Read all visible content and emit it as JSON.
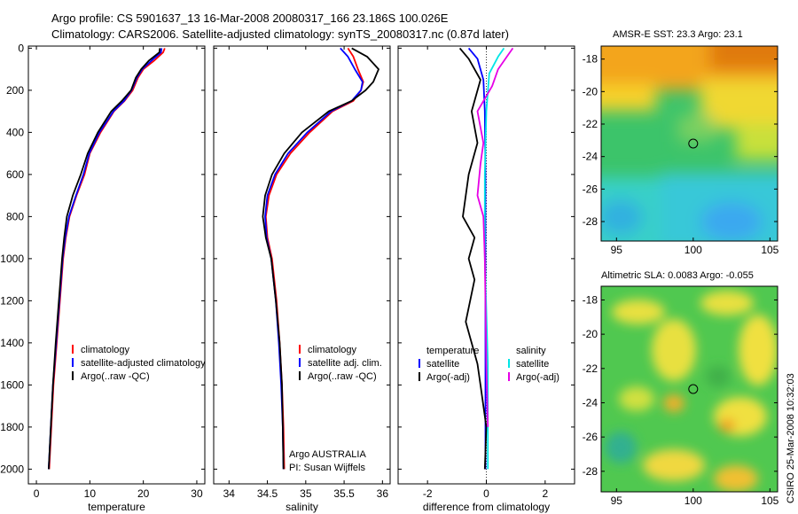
{
  "header": {
    "line1": "Argo profile: CS 5901637_13 16-Mar-2008 20080317_166 23.186S 100.026E",
    "line2": "Climatology: CARS2006. Satellite-adjusted climatology: synTS_20080317.nc (0.87d later)"
  },
  "footer": {
    "side_label": "CSIRO 25-Mar-2008 10:32:03",
    "float_label": "Argo AUSTRALIA",
    "pi_label": "PI: Susan Wijffels"
  },
  "colors": {
    "climatology": "#ff0000",
    "satellite": "#0000ff",
    "argo": "#000000",
    "sal_satellite": "#00e6e6",
    "sal_argo": "#e600e6"
  },
  "chart_data": [
    {
      "type": "line",
      "id": "temperature_profile",
      "xlabel": "temperature",
      "ylabel": "",
      "xlim": [
        -1.5,
        31.5
      ],
      "ylim": [
        2070,
        -10
      ],
      "y_reversed": true,
      "xticks": [
        0,
        10,
        20,
        30
      ],
      "yticks": [
        0,
        200,
        400,
        600,
        800,
        1000,
        1200,
        1400,
        1600,
        1800,
        2000
      ],
      "legend_position": "lower-right",
      "legend": [
        "climatology",
        "satellite-adjusted climatology",
        "Argo(..raw -QC)"
      ],
      "series": [
        {
          "name": "climatology",
          "color": "#ff0000",
          "points": [
            [
              24.0,
              0
            ],
            [
              23.7,
              20
            ],
            [
              22.0,
              60
            ],
            [
              20.0,
              100
            ],
            [
              19.0,
              140
            ],
            [
              18.0,
              200
            ],
            [
              16.5,
              250
            ],
            [
              14.5,
              300
            ],
            [
              12.0,
              400
            ],
            [
              10.0,
              500
            ],
            [
              9.0,
              600
            ],
            [
              7.5,
              700
            ],
            [
              6.2,
              800
            ],
            [
              5.5,
              900
            ],
            [
              5.0,
              1000
            ],
            [
              4.4,
              1200
            ],
            [
              3.8,
              1400
            ],
            [
              3.2,
              1600
            ],
            [
              2.8,
              1800
            ],
            [
              2.4,
              2000
            ]
          ]
        },
        {
          "name": "satellite-adjusted climatology",
          "color": "#0000ff",
          "points": [
            [
              23.4,
              0
            ],
            [
              23.3,
              20
            ],
            [
              21.5,
              60
            ],
            [
              19.8,
              100
            ],
            [
              18.8,
              140
            ],
            [
              17.8,
              200
            ],
            [
              16.4,
              250
            ],
            [
              14.4,
              300
            ],
            [
              11.8,
              400
            ],
            [
              9.9,
              500
            ],
            [
              8.8,
              600
            ],
            [
              7.4,
              700
            ],
            [
              6.1,
              800
            ],
            [
              5.4,
              900
            ],
            [
              4.9,
              1000
            ],
            [
              4.3,
              1200
            ],
            [
              3.7,
              1400
            ],
            [
              3.1,
              1600
            ],
            [
              2.7,
              1800
            ],
            [
              2.3,
              2000
            ]
          ]
        },
        {
          "name": "Argo(..raw -QC)",
          "color": "#000000",
          "points": [
            [
              23.1,
              0
            ],
            [
              23.0,
              20
            ],
            [
              21.0,
              60
            ],
            [
              19.6,
              100
            ],
            [
              18.6,
              140
            ],
            [
              17.7,
              200
            ],
            [
              16.0,
              250
            ],
            [
              14.0,
              300
            ],
            [
              11.5,
              400
            ],
            [
              9.6,
              500
            ],
            [
              8.3,
              600
            ],
            [
              6.8,
              700
            ],
            [
              5.7,
              800
            ],
            [
              5.2,
              900
            ],
            [
              4.8,
              1000
            ],
            [
              4.2,
              1200
            ],
            [
              3.6,
              1400
            ],
            [
              3.1,
              1600
            ],
            [
              2.7,
              1800
            ],
            [
              2.3,
              2000
            ]
          ]
        }
      ]
    },
    {
      "type": "line",
      "id": "salinity_profile",
      "xlabel": "salinity",
      "ylabel": "",
      "xlim": [
        33.8,
        36.1
      ],
      "ylim": [
        2070,
        -10
      ],
      "y_reversed": true,
      "xticks": [
        34,
        34.5,
        35,
        35.5,
        36
      ],
      "legend_position": "lower-right",
      "legend": [
        "climatology",
        "satellite adj. clim.",
        "Argo(..raw -QC)"
      ],
      "series": [
        {
          "name": "climatology",
          "color": "#ff0000",
          "points": [
            [
              35.55,
              0
            ],
            [
              35.62,
              40
            ],
            [
              35.68,
              100
            ],
            [
              35.75,
              160
            ],
            [
              35.72,
              200
            ],
            [
              35.62,
              250
            ],
            [
              35.35,
              300
            ],
            [
              35.05,
              400
            ],
            [
              34.8,
              500
            ],
            [
              34.62,
              600
            ],
            [
              34.52,
              700
            ],
            [
              34.48,
              800
            ],
            [
              34.5,
              900
            ],
            [
              34.56,
              1000
            ],
            [
              34.62,
              1200
            ],
            [
              34.66,
              1400
            ],
            [
              34.69,
              1600
            ],
            [
              34.71,
              1800
            ],
            [
              34.72,
              2000
            ]
          ]
        },
        {
          "name": "satellite adj. clim.",
          "color": "#0000ff",
          "points": [
            [
              35.45,
              0
            ],
            [
              35.55,
              40
            ],
            [
              35.64,
              100
            ],
            [
              35.74,
              160
            ],
            [
              35.72,
              200
            ],
            [
              35.6,
              250
            ],
            [
              35.33,
              300
            ],
            [
              35.02,
              400
            ],
            [
              34.77,
              500
            ],
            [
              34.6,
              600
            ],
            [
              34.5,
              700
            ],
            [
              34.47,
              800
            ],
            [
              34.49,
              900
            ],
            [
              34.55,
              1000
            ],
            [
              34.61,
              1200
            ],
            [
              34.65,
              1400
            ],
            [
              34.68,
              1600
            ],
            [
              34.7,
              1800
            ],
            [
              34.71,
              2000
            ]
          ]
        },
        {
          "name": "Argo(..raw -QC)",
          "color": "#000000",
          "points": [
            [
              35.6,
              0
            ],
            [
              35.8,
              40
            ],
            [
              35.95,
              100
            ],
            [
              35.88,
              160
            ],
            [
              35.78,
              200
            ],
            [
              35.6,
              250
            ],
            [
              35.3,
              300
            ],
            [
              34.95,
              400
            ],
            [
              34.72,
              500
            ],
            [
              34.56,
              600
            ],
            [
              34.47,
              700
            ],
            [
              34.44,
              800
            ],
            [
              34.48,
              900
            ],
            [
              34.55,
              1000
            ],
            [
              34.61,
              1200
            ],
            [
              34.66,
              1400
            ],
            [
              34.69,
              1600
            ],
            [
              34.7,
              1800
            ],
            [
              34.71,
              2000
            ]
          ]
        }
      ]
    },
    {
      "type": "line",
      "id": "difference_profile",
      "xlabel": "difference from climatology",
      "ylabel": "",
      "xlim": [
        -3.0,
        3.0
      ],
      "ylim": [
        2070,
        -10
      ],
      "y_reversed": true,
      "xticks": [
        -2,
        0,
        2
      ],
      "legend_position": "lower-center",
      "legend_left": [
        "temperature",
        "satellite",
        "Argo(-adj)"
      ],
      "legend_right": [
        "salinity",
        "satellite",
        "Argo(-adj)"
      ],
      "series": [
        {
          "name": "temperature satellite",
          "color": "#0000ff",
          "points": [
            [
              -0.6,
              0
            ],
            [
              -0.3,
              50
            ],
            [
              -0.1,
              150
            ],
            [
              -0.05,
              300
            ],
            [
              -0.03,
              600
            ],
            [
              -0.03,
              1000
            ],
            [
              -0.03,
              1500
            ],
            [
              -0.03,
              2000
            ]
          ]
        },
        {
          "name": "temperature Argo(-adj)",
          "color": "#000000",
          "points": [
            [
              -0.9,
              0
            ],
            [
              -0.6,
              50
            ],
            [
              -0.2,
              150
            ],
            [
              -0.5,
              300
            ],
            [
              -0.3,
              450
            ],
            [
              -0.6,
              600
            ],
            [
              -0.8,
              800
            ],
            [
              -0.4,
              900
            ],
            [
              -0.6,
              1000
            ],
            [
              -0.4,
              1100
            ],
            [
              -0.7,
              1300
            ],
            [
              -0.5,
              1400
            ],
            [
              -0.3,
              1500
            ],
            [
              -0.2,
              1600
            ],
            [
              0.0,
              1800
            ],
            [
              -0.05,
              2000
            ]
          ]
        },
        {
          "name": "salinity satellite",
          "color": "#00e6e6",
          "points": [
            [
              0.6,
              0
            ],
            [
              0.4,
              40
            ],
            [
              0.1,
              120
            ],
            [
              0.0,
              300
            ],
            [
              -0.05,
              600
            ],
            [
              -0.05,
              1000
            ],
            [
              0.05,
              1500
            ],
            [
              0.05,
              2000
            ]
          ]
        },
        {
          "name": "salinity Argo(-adj)",
          "color": "#e600e6",
          "points": [
            [
              0.9,
              0
            ],
            [
              0.7,
              40
            ],
            [
              0.4,
              100
            ],
            [
              0.2,
              180
            ],
            [
              -0.3,
              300
            ],
            [
              -0.1,
              450
            ],
            [
              -0.2,
              550
            ],
            [
              -0.3,
              700
            ],
            [
              -0.1,
              800
            ],
            [
              -0.05,
              1000
            ],
            [
              0.0,
              1500
            ],
            [
              0.05,
              1800
            ]
          ]
        }
      ]
    },
    {
      "type": "heatmap",
      "id": "sst_map",
      "title": "AMSR-E SST: 23.3 Argo: 23.1",
      "xlim": [
        94,
        105.5
      ],
      "ylim": [
        -29.2,
        -17.2
      ],
      "xticks": [
        95,
        100,
        105
      ],
      "yticks": [
        -18,
        -20,
        -22,
        -24,
        -26,
        -28
      ],
      "marker": [
        100.0,
        -23.2
      ]
    },
    {
      "type": "heatmap",
      "id": "sla_map",
      "title": "Altimetric SLA: 0.0083 Argo: -0.055",
      "xlim": [
        94,
        105.5
      ],
      "ylim": [
        -29.2,
        -17.2
      ],
      "xticks": [
        95,
        100,
        105
      ],
      "yticks": [
        -18,
        -20,
        -22,
        -24,
        -26,
        -28
      ],
      "marker": [
        100.0,
        -23.2
      ]
    }
  ]
}
